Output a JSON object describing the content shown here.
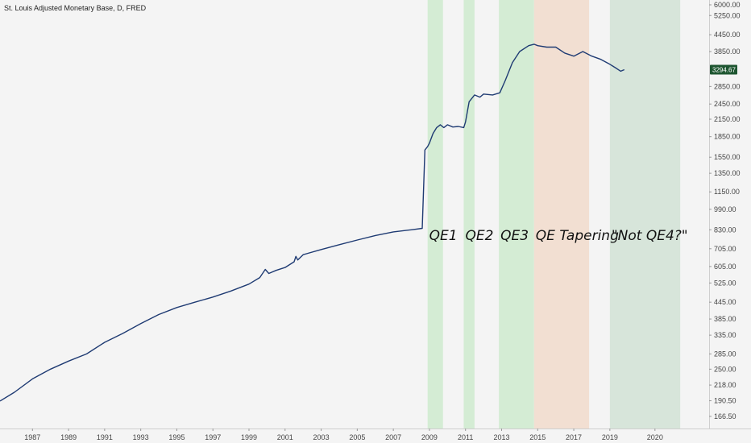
{
  "chart_data": {
    "type": "line",
    "title": "St. Louis Adjusted Monetary Base, D, FRED",
    "xlabel": "",
    "ylabel": "",
    "y_scale": "log",
    "xlim": [
      1985.2,
      2024.5
    ],
    "ylim": [
      150,
      6000
    ],
    "x_ticks": [
      "1987",
      "1989",
      "1991",
      "1993",
      "1995",
      "1997",
      "1999",
      "2001",
      "2003",
      "2005",
      "2007",
      "2009",
      "2011",
      "2013",
      "2015",
      "2017",
      "2019",
      "2020"
    ],
    "y_ticks": [
      "6000.00",
      "5250.00",
      "4450.00",
      "3850.00",
      "3294.67",
      "2850.00",
      "2450.00",
      "2150.00",
      "1850.00",
      "1550.00",
      "1350.00",
      "1150.00",
      "990.00",
      "830.00",
      "705.00",
      "605.00",
      "525.00",
      "445.00",
      "385.00",
      "335.00",
      "285.00",
      "250.00",
      "218.00",
      "190.50",
      "166.50"
    ],
    "last_value": "3294.67",
    "line_color": "#1f3b73",
    "last_badge_color": "#1e5631",
    "series": [
      {
        "x": [
          1985.2,
          1986.0,
          1987.0,
          1988.0,
          1989.0,
          1990.0,
          1991.0,
          1992.0,
          1993.0,
          1994.0,
          1995.0,
          1996.0,
          1997.0,
          1998.0,
          1999.0,
          1999.6,
          1999.9,
          2000.1,
          2000.5,
          2001.0,
          2001.5,
          2001.6,
          2001.7,
          2002.0,
          2003.0,
          2004.0,
          2005.0,
          2006.0,
          2007.0,
          2008.0,
          2008.6,
          2008.75,
          2008.9,
          2009.0,
          2009.2,
          2009.4,
          2009.6,
          2009.8,
          2010.0,
          2010.3,
          2010.6,
          2010.9,
          2011.0,
          2011.2,
          2011.5,
          2011.8,
          2012.0,
          2012.5,
          2012.9,
          2013.2,
          2013.6,
          2014.0,
          2014.5,
          2014.8,
          2015.0,
          2015.5,
          2016.0,
          2016.5,
          2017.0,
          2017.5,
          2018.0,
          2018.5,
          2019.0,
          2019.3,
          2019.6,
          2019.8
        ],
        "values": [
          190,
          205,
          230,
          250,
          268,
          285,
          315,
          340,
          370,
          400,
          425,
          445,
          465,
          490,
          520,
          550,
          590,
          570,
          585,
          600,
          630,
          660,
          640,
          670,
          700,
          730,
          760,
          790,
          815,
          830,
          840,
          1650,
          1700,
          1750,
          1900,
          2000,
          2050,
          2000,
          2050,
          2010,
          2020,
          2000,
          2100,
          2500,
          2650,
          2600,
          2670,
          2650,
          2700,
          3000,
          3500,
          3850,
          4050,
          4100,
          4050,
          4000,
          4000,
          3800,
          3700,
          3850,
          3700,
          3600,
          3450,
          3350,
          3250,
          3294.67
        ]
      }
    ],
    "regions": [
      {
        "label": "QE1",
        "start": 2008.9,
        "end": 2009.75,
        "color": "#d4ecd4"
      },
      {
        "label": "QE2",
        "start": 2010.9,
        "end": 2011.5,
        "color": "#d4ecd4"
      },
      {
        "label": "QE3",
        "start": 2012.85,
        "end": 2014.8,
        "color": "#d4ecd4"
      },
      {
        "label": "QE Tapering",
        "start": 2014.8,
        "end": 2017.85,
        "color": "#f2dfd2"
      },
      {
        "label": "\"Not QE4?\"",
        "start": 2019.0,
        "end": 2022.9,
        "color": "#d7e5da"
      }
    ]
  }
}
